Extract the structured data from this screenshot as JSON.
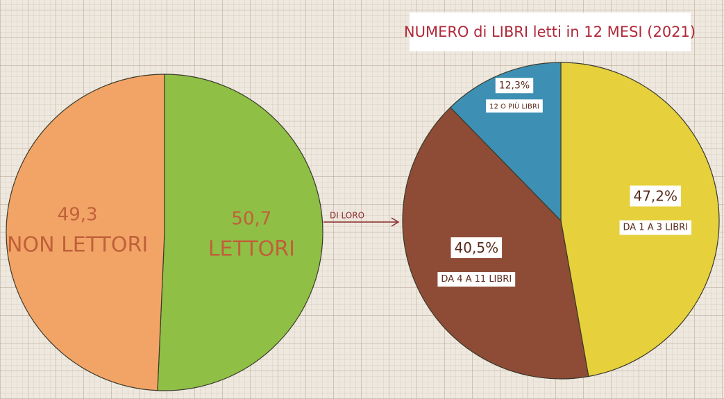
{
  "chart_data": [
    {
      "type": "pie",
      "categories": [
        "LETTORI",
        "NON LETTORI"
      ],
      "values": [
        50.7,
        49.3
      ],
      "value_labels": [
        "50,7",
        "49,3"
      ],
      "colors": [
        "#8fbf45",
        "#f2a466"
      ],
      "annotation": "DI LORO"
    },
    {
      "type": "pie",
      "title": "NUMERO di LIBRI letti in 12 MESI (2021)",
      "categories": [
        "DA 1 A 3 LIBRI",
        "DA 4 A 11 LIBRI",
        "12 O PIÙ LIBRI"
      ],
      "values": [
        47.2,
        40.5,
        12.3
      ],
      "value_labels": [
        "47,2%",
        "40,5%",
        "12,3%"
      ],
      "colors": [
        "#e6d03c",
        "#8e4b36",
        "#3d8fb3"
      ]
    }
  ]
}
